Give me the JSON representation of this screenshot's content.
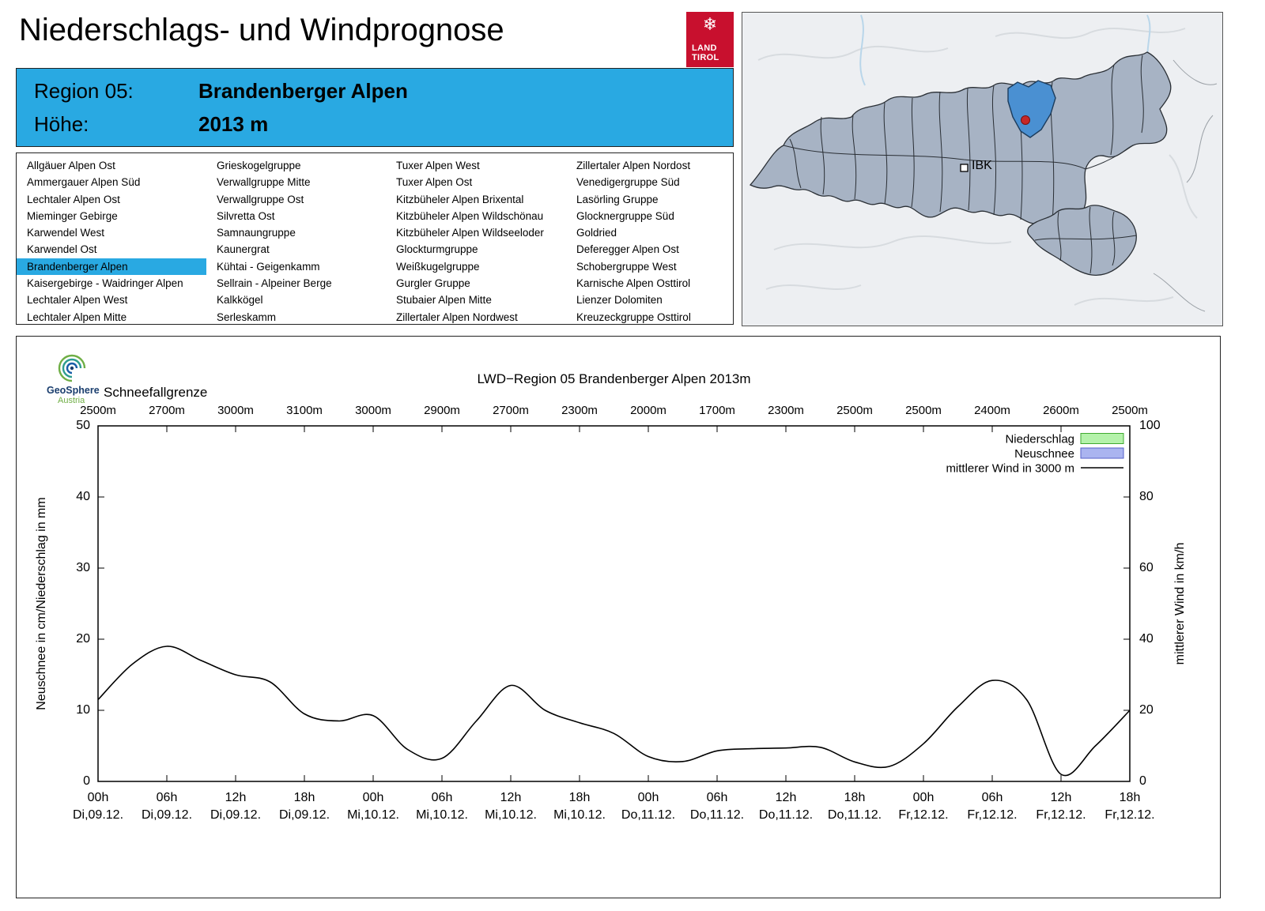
{
  "page_title": "Niederschlags- und Windprognose",
  "logo": {
    "line1": "LAND",
    "line2": "TIROL",
    "color": "#c8102e"
  },
  "region_header": {
    "region_label": "Region 05:",
    "region_value": "Brandenberger Alpen",
    "altitude_label": "Höhe:",
    "altitude_value": "2013 m",
    "background": "#29a9e2"
  },
  "region_list": {
    "selected": "Brandenberger Alpen",
    "highlight_color": "#29a9e2",
    "columns": [
      [
        "Allgäuer Alpen Ost",
        "Ammergauer Alpen Süd",
        "Lechtaler Alpen Ost",
        "Mieminger Gebirge",
        "Karwendel West",
        "Karwendel Ost",
        "Brandenberger Alpen",
        "Kaisergebirge - Waidringer Alpen",
        "Lechtaler Alpen West",
        "Lechtaler Alpen Mitte"
      ],
      [
        "Grieskogelgruppe",
        "Verwallgruppe Mitte",
        "Verwallgruppe Ost",
        "Silvretta Ost",
        "Samnaungruppe",
        "Kaunergrat",
        "Kühtai - Geigenkamm",
        "Sellrain - Alpeiner Berge",
        "Kalkkögel",
        "Serleskamm"
      ],
      [
        "Tuxer Alpen West",
        "Tuxer Alpen Ost",
        "Kitzbüheler Alpen Brixental",
        "Kitzbüheler Alpen Wildschönau",
        "Kitzbüheler Alpen Wildseeloder",
        "Glockturmgruppe",
        "Weißkugelgruppe",
        "Gurgler Gruppe",
        "Stubaier Alpen Mitte",
        "Zillertaler Alpen Nordwest"
      ],
      [
        "Zillertaler Alpen Nordost",
        "Venedigergruppe Süd",
        "Lasörling Gruppe",
        "Glocknergruppe Süd",
        "Goldried",
        "Deferegger Alpen Ost",
        "Schobergruppe West",
        "Karnische Alpen Osttirol",
        "Lienzer Dolomiten",
        "Kreuzeckgruppe Osttirol"
      ]
    ]
  },
  "map": {
    "city_label": "IBK",
    "region_fill": "#a7b3c4",
    "selected_fill": "#4a90d2",
    "marker_color": "#c62828"
  },
  "brand": {
    "name": "GeoSphere",
    "sub": "Austria"
  },
  "chart_data": {
    "type": "line",
    "title": "LWD−Region 05 Brandenberger Alpen 2013m",
    "snowline": {
      "label": "Schneefallgrenze",
      "values": [
        "2500m",
        "2700m",
        "3000m",
        "3100m",
        "3000m",
        "2900m",
        "2700m",
        "2300m",
        "2000m",
        "1700m",
        "2300m",
        "2500m",
        "2500m",
        "2400m",
        "2600m",
        "2500m"
      ]
    },
    "x_hours": [
      0,
      3,
      6,
      9,
      12,
      15,
      18,
      21,
      24,
      27,
      30,
      33,
      36,
      39,
      42,
      45,
      48,
      51,
      54,
      57,
      60,
      63,
      66,
      69,
      72,
      75,
      78,
      81,
      84,
      87,
      90
    ],
    "series": [
      {
        "name": "mittlerer Wind in 3000 m",
        "unit": "km/h",
        "axis": "right",
        "values": [
          23,
          33,
          38,
          34,
          30,
          28,
          19,
          17,
          18.5,
          9,
          6.5,
          17,
          27,
          20,
          16.5,
          13.5,
          7,
          5.6,
          8.6,
          9.2,
          9.4,
          9.6,
          5.5,
          4.2,
          10.6,
          21,
          28.4,
          23,
          2,
          10,
          20
        ]
      }
    ],
    "x_tick_labels": [
      {
        "hour": "00h",
        "date": "Di,09.12."
      },
      {
        "hour": "06h",
        "date": "Di,09.12."
      },
      {
        "hour": "12h",
        "date": "Di,09.12."
      },
      {
        "hour": "18h",
        "date": "Di,09.12."
      },
      {
        "hour": "00h",
        "date": "Mi,10.12."
      },
      {
        "hour": "06h",
        "date": "Mi,10.12."
      },
      {
        "hour": "12h",
        "date": "Mi,10.12."
      },
      {
        "hour": "18h",
        "date": "Mi,10.12."
      },
      {
        "hour": "00h",
        "date": "Do,11.12."
      },
      {
        "hour": "06h",
        "date": "Do,11.12."
      },
      {
        "hour": "12h",
        "date": "Do,11.12."
      },
      {
        "hour": "18h",
        "date": "Do,11.12."
      },
      {
        "hour": "00h",
        "date": "Fr,12.12."
      },
      {
        "hour": "06h",
        "date": "Fr,12.12."
      },
      {
        "hour": "12h",
        "date": "Fr,12.12."
      },
      {
        "hour": "18h",
        "date": "Fr,12.12."
      }
    ],
    "y_left": {
      "label": "Neuschnee in cm/Niederschlag in mm",
      "min": 0,
      "max": 50,
      "ticks": [
        0,
        10,
        20,
        30,
        40,
        50
      ]
    },
    "y_right": {
      "label": "mittlerer Wind in km/h",
      "min": 0,
      "max": 100,
      "ticks": [
        0,
        20,
        40,
        60,
        80,
        100
      ]
    },
    "legend": [
      {
        "label": "Niederschlag",
        "type": "box",
        "swatch": "#b4f2aa",
        "border": "#3faa30"
      },
      {
        "label": "Neuschnee",
        "type": "box",
        "swatch": "#aab4f0",
        "border": "#5560c8"
      },
      {
        "label": "mittlerer Wind in 3000 m",
        "type": "line",
        "color": "#000000"
      }
    ],
    "grid": false,
    "legend_position": "top-right"
  }
}
